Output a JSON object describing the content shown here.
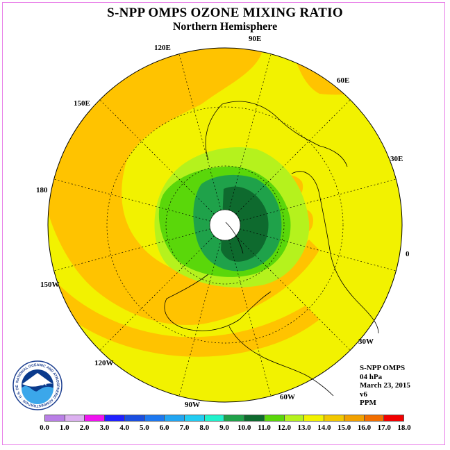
{
  "title": "S-NPP OMPS OZONE MIXING RATIO",
  "subtitle": "Northern Hemisphere",
  "longitude_labels": [
    {
      "id": "lon-90e",
      "text": "90E"
    },
    {
      "id": "lon-60e",
      "text": "60E"
    },
    {
      "id": "lon-30e",
      "text": "30E"
    },
    {
      "id": "lon-0",
      "text": "0"
    },
    {
      "id": "lon-30w",
      "text": "30W"
    },
    {
      "id": "lon-60w",
      "text": "60W"
    },
    {
      "id": "lon-90w",
      "text": "90W"
    },
    {
      "id": "lon-120w",
      "text": "120W"
    },
    {
      "id": "lon-150w",
      "text": "150W"
    },
    {
      "id": "lon-180",
      "text": "180"
    },
    {
      "id": "lon-150e",
      "text": "150E"
    },
    {
      "id": "lon-120e",
      "text": "120E"
    }
  ],
  "info": {
    "instrument": "S-NPP OMPS",
    "level": "04 hPa",
    "date": "March 23, 2015",
    "version": "v6",
    "units": "PPM"
  },
  "logo": {
    "text": "NOAA",
    "ring_text": "NATIONAL OCEANIC AND ATMOSPHERIC ADMINISTRATION · U.S. DEPARTMENT OF COMMERCE"
  },
  "colorbar": {
    "ticks": [
      "0.0",
      "1.0",
      "2.0",
      "3.0",
      "4.0",
      "5.0",
      "6.0",
      "7.0",
      "8.0",
      "9.0",
      "10.0",
      "11.0",
      "12.0",
      "13.0",
      "14.0",
      "15.0",
      "16.0",
      "17.0",
      "18.0"
    ],
    "colors": [
      "#b97fe6",
      "#dcb0f0",
      "#f013f0",
      "#2020ff",
      "#1a4ee0",
      "#1d78f0",
      "#22a6f2",
      "#22ccf2",
      "#20f2cc",
      "#1fa24a",
      "#0e6a2e",
      "#5ad70a",
      "#b5f21d",
      "#f2f200",
      "#f2c800",
      "#f2a100",
      "#f26e00",
      "#f20000",
      "#a0522d"
    ]
  },
  "map_colors": {
    "outer": "#ffc300",
    "mid": "#f2f200",
    "light_green": "#b5f21d",
    "green": "#5ad70a",
    "mid_green": "#1fa24a",
    "dark_green": "#0e6a2e",
    "pole_hole": "#ffffff"
  }
}
